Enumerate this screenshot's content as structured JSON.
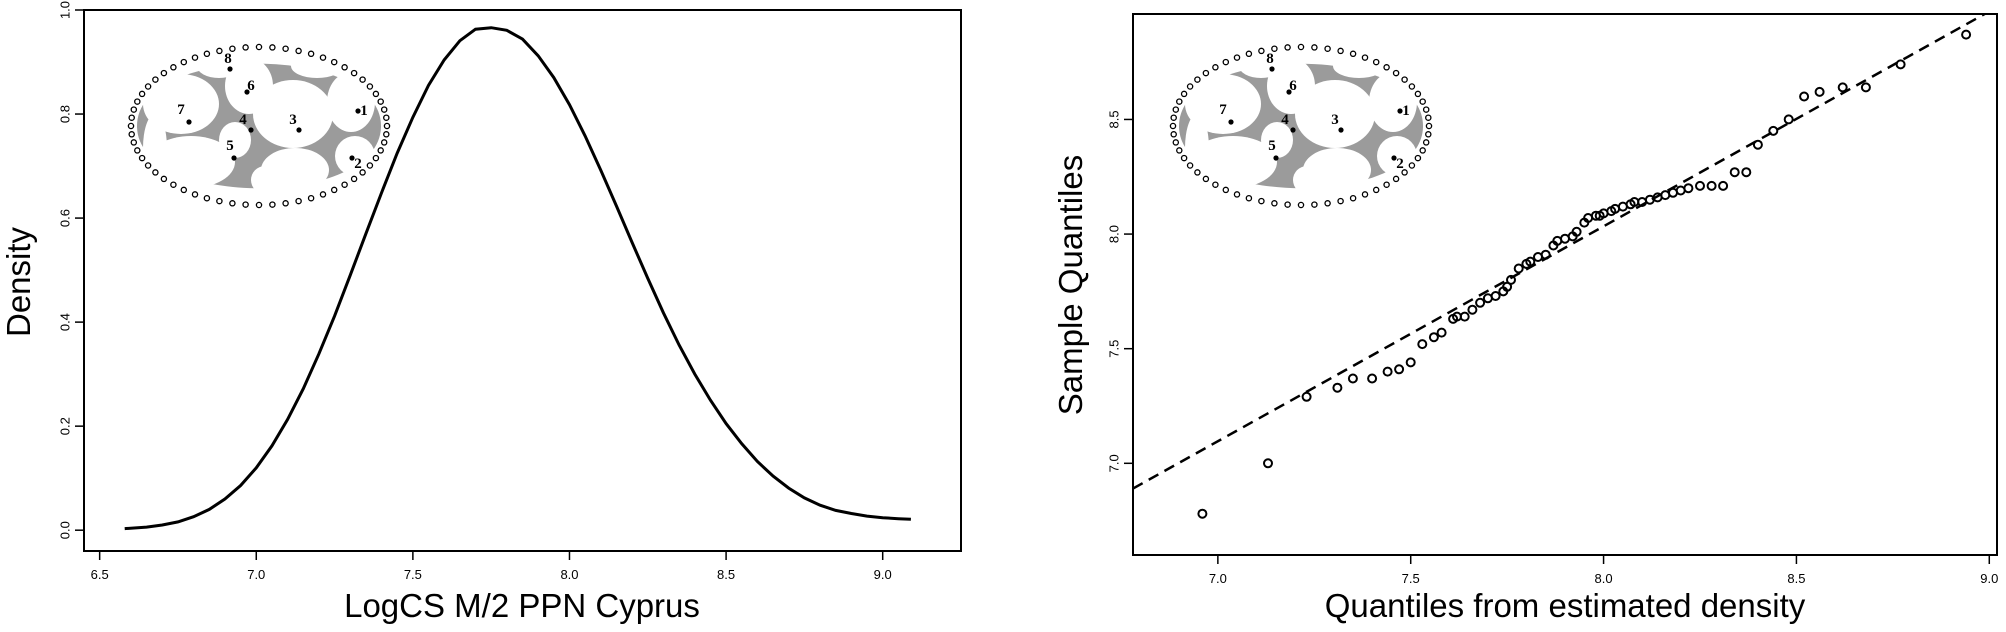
{
  "chart_data": [
    {
      "type": "line",
      "title": "",
      "xlabel": "LogCS M/2 PPN Cyprus",
      "ylabel": "Density",
      "xlim": [
        6.45,
        9.25
      ],
      "ylim": [
        -0.04,
        1.0
      ],
      "x_ticks": [
        "6.5",
        "7.0",
        "7.5",
        "8.0",
        "8.5",
        "9.0"
      ],
      "y_ticks": [
        "0.0",
        "0.2",
        "0.4",
        "0.6",
        "0.8",
        "1.0"
      ],
      "grid": false,
      "series": [
        {
          "x": [
            6.58,
            6.65,
            6.7,
            6.75,
            6.8,
            6.85,
            6.9,
            6.95,
            7.0,
            7.05,
            7.1,
            7.15,
            7.2,
            7.25,
            7.3,
            7.35,
            7.4,
            7.45,
            7.5,
            7.55,
            7.6,
            7.65,
            7.7,
            7.75,
            7.8,
            7.85,
            7.9,
            7.95,
            8.0,
            8.05,
            8.1,
            8.15,
            8.2,
            8.25,
            8.3,
            8.35,
            8.4,
            8.45,
            8.5,
            8.55,
            8.6,
            8.65,
            8.7,
            8.75,
            8.8,
            8.85,
            8.9,
            8.95,
            9.0,
            9.05,
            9.09
          ],
          "y": [
            0.003,
            0.006,
            0.01,
            0.016,
            0.026,
            0.04,
            0.06,
            0.086,
            0.12,
            0.162,
            0.213,
            0.272,
            0.339,
            0.412,
            0.49,
            0.57,
            0.649,
            0.725,
            0.794,
            0.855,
            0.904,
            0.941,
            0.963,
            0.966,
            0.961,
            0.944,
            0.912,
            0.87,
            0.818,
            0.758,
            0.692,
            0.623,
            0.553,
            0.484,
            0.418,
            0.356,
            0.3,
            0.25,
            0.205,
            0.166,
            0.132,
            0.104,
            0.081,
            0.062,
            0.048,
            0.038,
            0.032,
            0.027,
            0.024,
            0.022,
            0.021
          ]
        }
      ]
    },
    {
      "type": "scatter",
      "title": "",
      "xlabel": "Quantiles from estimated density",
      "ylabel": "Sample Quantiles",
      "xlim": [
        6.78,
        9.02
      ],
      "ylim": [
        6.6,
        8.96
      ],
      "x_ticks": [
        "7.0",
        "7.5",
        "8.0",
        "8.5",
        "9.0"
      ],
      "y_ticks": [
        "7.0",
        "7.5",
        "8.0",
        "8.5"
      ],
      "grid": false,
      "reference_line": {
        "style": "dashed",
        "x": [
          6.78,
          9.02
        ],
        "y": [
          6.89,
          8.99
        ]
      },
      "series": [
        {
          "x": [
            6.96,
            7.13,
            7.23,
            7.31,
            7.35,
            7.4,
            7.44,
            7.47,
            7.5,
            7.53,
            7.56,
            7.58,
            7.61,
            7.62,
            7.64,
            7.66,
            7.68,
            7.7,
            7.72,
            7.74,
            7.75,
            7.76,
            7.78,
            7.8,
            7.81,
            7.83,
            7.85,
            7.87,
            7.88,
            7.9,
            7.92,
            7.93,
            7.95,
            7.96,
            7.98,
            7.99,
            8.0,
            8.02,
            8.03,
            8.05,
            8.07,
            8.08,
            8.1,
            8.12,
            8.14,
            8.16,
            8.18,
            8.2,
            8.22,
            8.25,
            8.28,
            8.31,
            8.34,
            8.37,
            8.4,
            8.44,
            8.48,
            8.52,
            8.56,
            8.62,
            8.68,
            8.77,
            8.94
          ],
          "y": [
            6.78,
            7.0,
            7.29,
            7.33,
            7.37,
            7.37,
            7.4,
            7.41,
            7.44,
            7.52,
            7.55,
            7.57,
            7.63,
            7.64,
            7.64,
            7.67,
            7.7,
            7.72,
            7.73,
            7.75,
            7.77,
            7.8,
            7.85,
            7.87,
            7.88,
            7.9,
            7.91,
            7.95,
            7.97,
            7.98,
            7.99,
            8.01,
            8.05,
            8.07,
            8.08,
            8.08,
            8.09,
            8.1,
            8.11,
            8.12,
            8.13,
            8.14,
            8.14,
            8.15,
            8.16,
            8.17,
            8.18,
            8.19,
            8.2,
            8.21,
            8.21,
            8.21,
            8.27,
            8.27,
            8.39,
            8.45,
            8.5,
            8.6,
            8.62,
            8.64,
            8.64,
            8.74,
            8.87
          ]
        }
      ]
    }
  ],
  "inset": {
    "landmarks": [
      "1",
      "2",
      "3",
      "4",
      "5",
      "6",
      "7",
      "8"
    ]
  }
}
